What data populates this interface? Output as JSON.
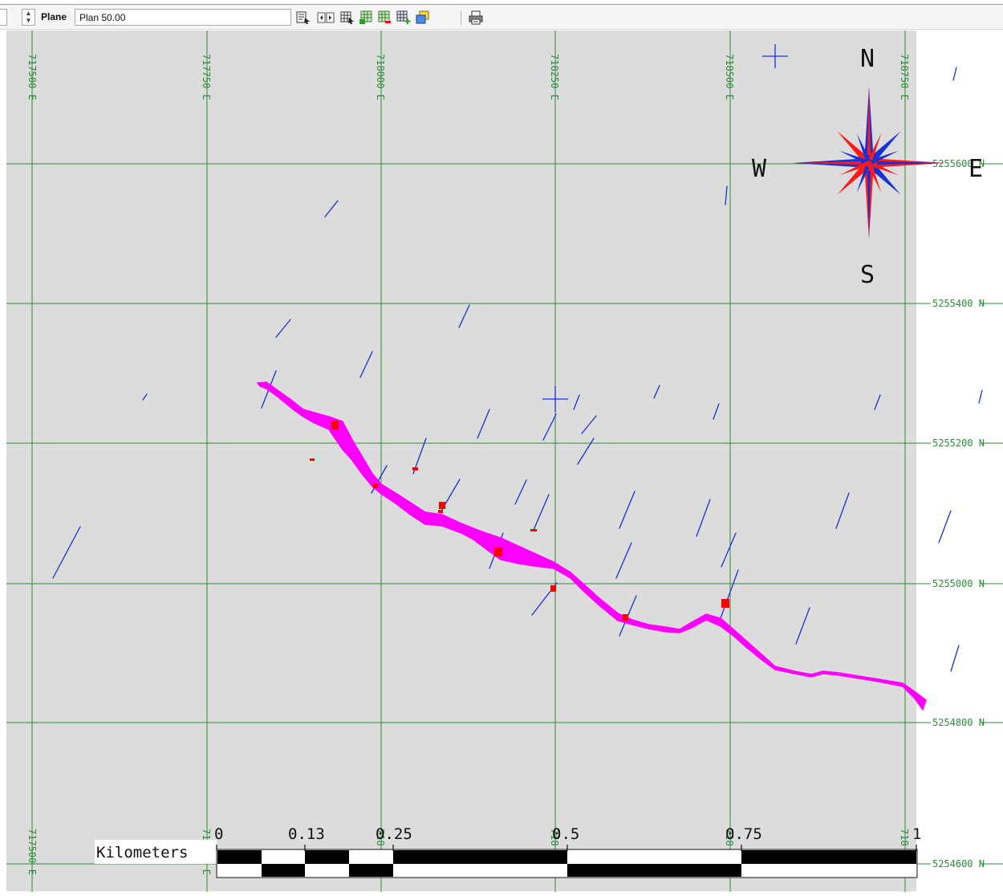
{
  "toolbar": {
    "plane_label": "Plane",
    "plane_value": "Plan 50.00",
    "buttons": [
      {
        "name": "select-icon"
      },
      {
        "name": "prev-next-icon"
      },
      {
        "name": "grid-select-icon"
      },
      {
        "name": "grid-add-icon"
      },
      {
        "name": "grid-remove-icon"
      },
      {
        "name": "grid-plus-icon"
      },
      {
        "name": "layers-icon"
      },
      {
        "name": "print-icon"
      }
    ]
  },
  "map": {
    "grid_color": "#2e8b3a",
    "background": "#dcdcdc",
    "route_color": "#ff00ff",
    "marker_color": "#ff0000",
    "drillhole_color": "#1a2fd4",
    "eastings": [
      "717500 E",
      "717750 E",
      "718000 E",
      "718250 E",
      "718500 E",
      "718750 E"
    ],
    "northings": [
      "5255600 N",
      "5255400 N",
      "5255200 N",
      "5255000 N",
      "5254800 N",
      "5254600 N"
    ],
    "bottom_eastings_partial": [
      "717500 E",
      "717750 E",
      "718",
      "718",
      "718",
      "718"
    ],
    "compass": {
      "N": "N",
      "S": "S",
      "E": "E",
      "W": "W"
    }
  },
  "scale_bar": {
    "units_label": "Kilometers",
    "ticks": [
      "0",
      "0.13",
      "0.25",
      "0.5",
      "0.75",
      "1"
    ]
  }
}
